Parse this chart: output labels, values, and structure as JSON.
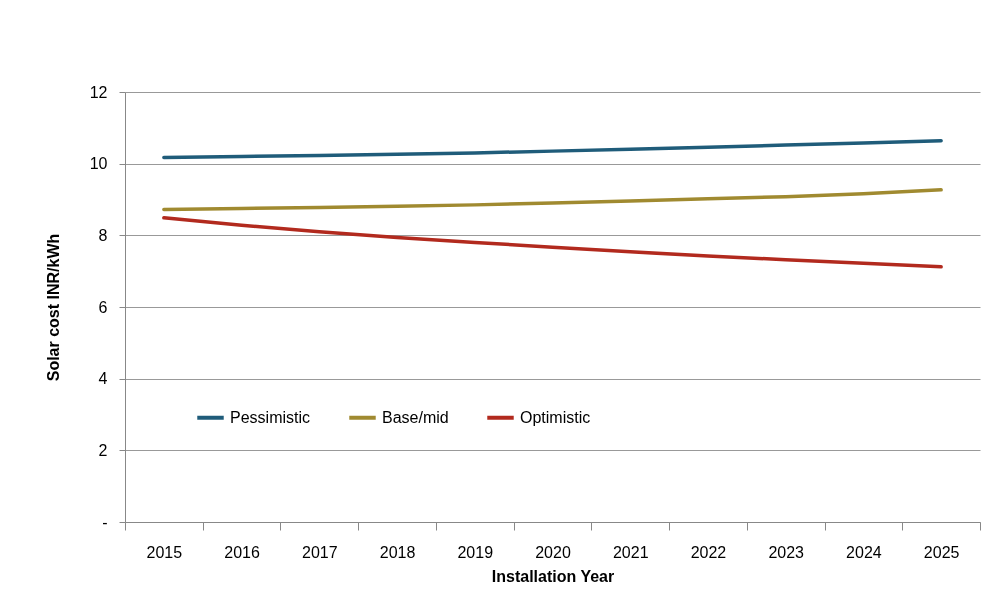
{
  "chart_data": {
    "type": "line",
    "xlabel": "Installation Year",
    "ylabel": "Solar cost  INR/kWh",
    "categories": [
      "2015",
      "2016",
      "2017",
      "2018",
      "2019",
      "2020",
      "2021",
      "2022",
      "2023",
      "2024",
      "2025"
    ],
    "series": [
      {
        "name": "Pessimistic",
        "color": "#1f5c7a",
        "values": [
          10.17,
          10.2,
          10.23,
          10.26,
          10.3,
          10.35,
          10.4,
          10.46,
          10.52,
          10.58,
          10.64
        ]
      },
      {
        "name": "Base/mid",
        "color": "#a08a30",
        "values": [
          8.72,
          8.75,
          8.78,
          8.81,
          8.85,
          8.9,
          8.96,
          9.02,
          9.08,
          9.16,
          9.27
        ]
      },
      {
        "name": "Optimistic",
        "color": "#b22a1e",
        "values": [
          8.49,
          8.28,
          8.1,
          7.94,
          7.8,
          7.67,
          7.54,
          7.42,
          7.32,
          7.22,
          7.12
        ]
      }
    ],
    "ylim": [
      0,
      12
    ],
    "yticks": [
      {
        "value": 0,
        "label": "-"
      },
      2,
      4,
      6,
      8,
      10,
      12
    ],
    "grid": "y",
    "legend": "bottom left",
    "line_style": "solid"
  }
}
